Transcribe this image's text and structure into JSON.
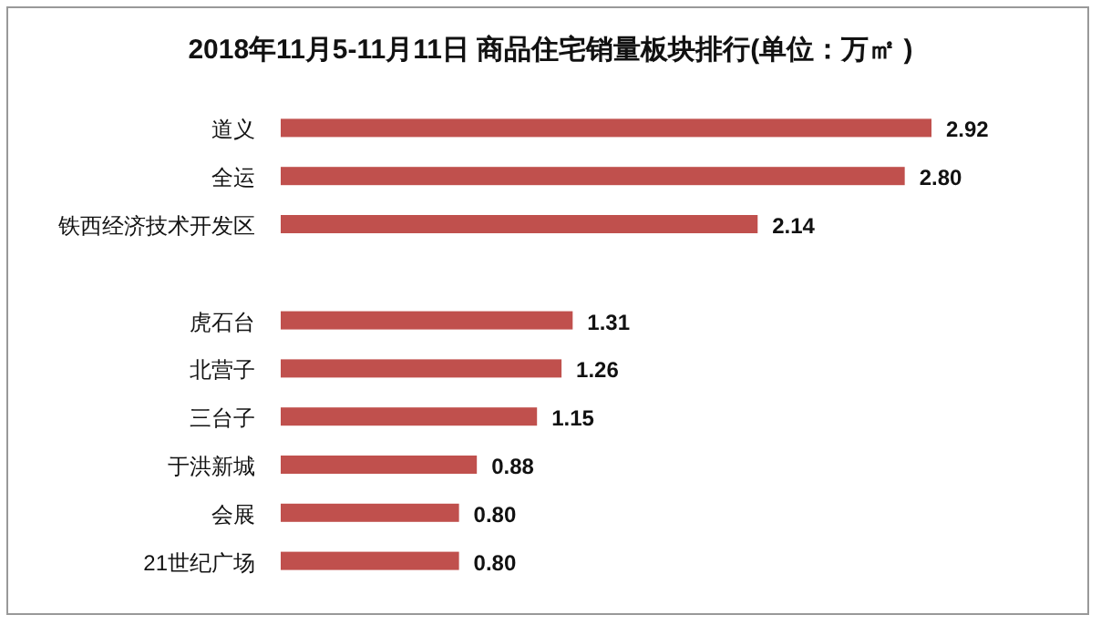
{
  "chart_data": {
    "type": "bar",
    "orientation": "horizontal",
    "title": "2018年11月5-11月11日 商品住宅销量板块排行(单位：万㎡ )",
    "categories": [
      "道义",
      "全运",
      "铁西经济技术开发区",
      null,
      "虎石台",
      "北营子",
      "三台子",
      "于洪新城",
      "会展",
      "21世纪广场"
    ],
    "values": [
      2.92,
      2.8,
      2.14,
      null,
      1.31,
      1.26,
      1.15,
      0.88,
      0.8,
      0.8
    ],
    "value_labels": [
      "2.92",
      "2.80",
      "2.14",
      null,
      "1.31",
      "1.26",
      "1.15",
      "0.88",
      "0.80",
      "0.80"
    ],
    "color": "#c0504d"
  }
}
